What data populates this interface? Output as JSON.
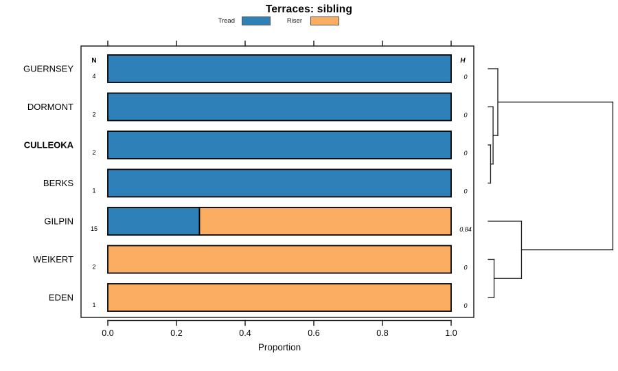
{
  "title": "Terraces: sibling",
  "legend": {
    "items": [
      {
        "label": "Tread",
        "color": "#2E80B9"
      },
      {
        "label": "Riser",
        "color": "#FBAD62"
      }
    ]
  },
  "columns": {
    "n_header": "N",
    "h_header": "H"
  },
  "chart_data": {
    "type": "bar",
    "orientation": "horizontal",
    "stacked": true,
    "title": "Terraces: sibling",
    "xlabel": "Proportion",
    "xlim": [
      0,
      1
    ],
    "x_ticks": [
      0.0,
      0.2,
      0.4,
      0.6,
      0.8,
      1.0
    ],
    "categories": [
      "GUERNSEY",
      "DORMONT",
      "CULLEOKA",
      "BERKS",
      "GILPIN",
      "WEIKERT",
      "EDEN"
    ],
    "rows": [
      {
        "label": "GUERNSEY",
        "bold": false,
        "n": "4",
        "tread": 1.0,
        "riser": 0.0,
        "h": "0"
      },
      {
        "label": "DORMONT",
        "bold": false,
        "n": "2",
        "tread": 1.0,
        "riser": 0.0,
        "h": "0"
      },
      {
        "label": "CULLEOKA",
        "bold": true,
        "n": "2",
        "tread": 1.0,
        "riser": 0.0,
        "h": "0"
      },
      {
        "label": "BERKS",
        "bold": false,
        "n": "1",
        "tread": 1.0,
        "riser": 0.0,
        "h": "0"
      },
      {
        "label": "GILPIN",
        "bold": false,
        "n": "15",
        "tread": 0.267,
        "riser": 0.733,
        "h": "0.84"
      },
      {
        "label": "WEIKERT",
        "bold": false,
        "n": "2",
        "tread": 0.0,
        "riser": 1.0,
        "h": "0"
      },
      {
        "label": "EDEN",
        "bold": false,
        "n": "1",
        "tread": 0.0,
        "riser": 1.0,
        "h": "0"
      }
    ],
    "series": [
      {
        "name": "Tread",
        "values": [
          1.0,
          1.0,
          1.0,
          1.0,
          0.267,
          0.0,
          0.0
        ]
      },
      {
        "name": "Riser",
        "values": [
          0.0,
          0.0,
          0.0,
          0.0,
          0.733,
          1.0,
          1.0
        ]
      }
    ],
    "colors": {
      "tread": "#2E80B9",
      "riser": "#FBAD62",
      "bar_border": "#000000",
      "frame": "#222222",
      "dendrogram": "#1a1a1a",
      "text": "#000000"
    },
    "legend_position": "top",
    "grid": false,
    "dendrogram": {
      "note": "right-side cluster tree, merge heights normalized 0-1",
      "tree": {
        "h": 1.0,
        "children": [
          {
            "h": 0.077,
            "children": [
              {
                "leaf": "GUERNSEY"
              },
              {
                "h": 0.039,
                "children": [
                  {
                    "leaf": "DORMONT"
                  },
                  {
                    "h": 0.019,
                    "children": [
                      {
                        "leaf": "CULLEOKA"
                      },
                      {
                        "leaf": "BERKS"
                      }
                    ]
                  }
                ]
              }
            ]
          },
          {
            "h": 0.267,
            "children": [
              {
                "leaf": "GILPIN"
              },
              {
                "h": 0.047,
                "children": [
                  {
                    "leaf": "WEIKERT"
                  },
                  {
                    "leaf": "EDEN"
                  }
                ]
              }
            ]
          }
        ]
      }
    }
  }
}
